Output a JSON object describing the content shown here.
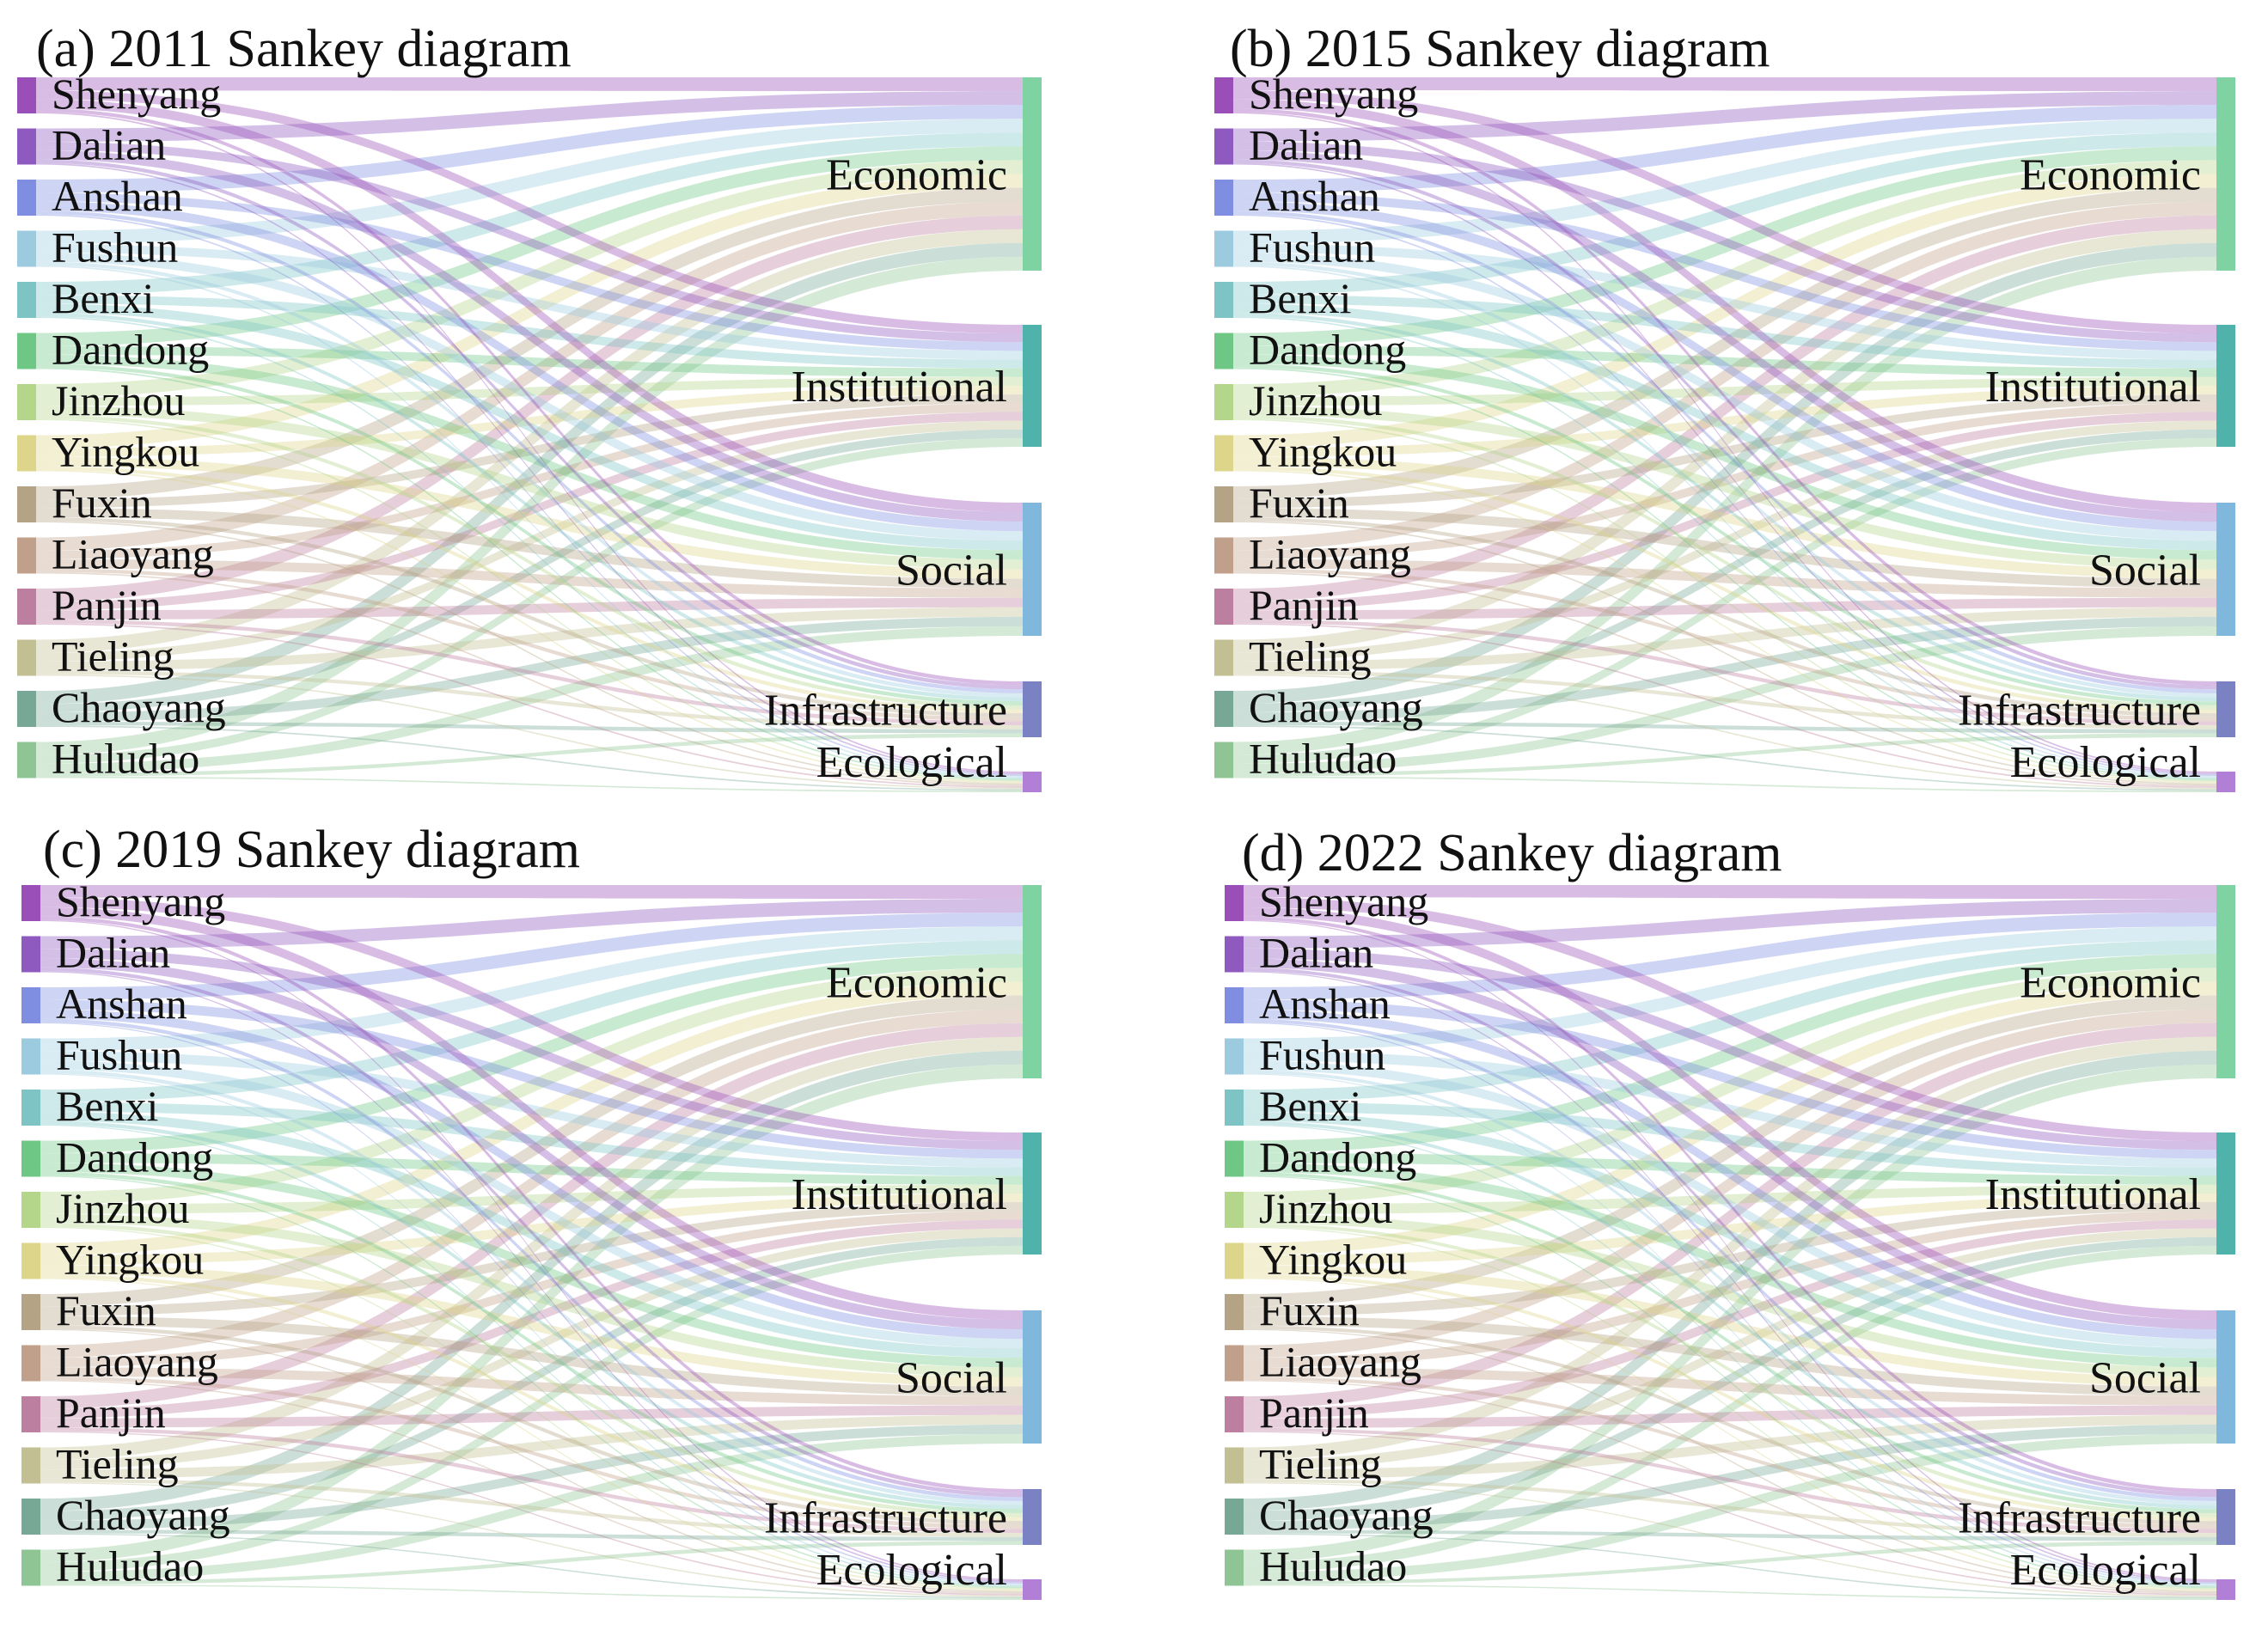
{
  "chart_data": [
    {
      "type": "sankey",
      "title": "(a) 2011 Sankey diagram",
      "sources": [
        "Shenyang",
        "Dalian",
        "Anshan",
        "Fushun",
        "Benxi",
        "Dandong",
        "Jinzhou",
        "Yingkou",
        "Fuxin",
        "Liaoyang",
        "Panjin",
        "Tieling",
        "Chaoyang",
        "Huludao"
      ],
      "targets": [
        "Economic",
        "Institutional",
        "Social",
        "Infrastructure",
        "Ecological"
      ],
      "target_weights": [
        36,
        23,
        25,
        10,
        4
      ]
    },
    {
      "type": "sankey",
      "title": "(b) 2015 Sankey diagram",
      "sources": [
        "Shenyang",
        "Dalian",
        "Anshan",
        "Fushun",
        "Benxi",
        "Dandong",
        "Jinzhou",
        "Yingkou",
        "Fuxin",
        "Liaoyang",
        "Panjin",
        "Tieling",
        "Chaoyang",
        "Huludao"
      ],
      "targets": [
        "Economic",
        "Institutional",
        "Social",
        "Infrastructure",
        "Ecological"
      ],
      "target_weights": [
        35,
        24,
        25,
        10,
        4
      ]
    },
    {
      "type": "sankey",
      "title": "(c) 2019 Sankey diagram",
      "sources": [
        "Shenyang",
        "Dalian",
        "Anshan",
        "Fushun",
        "Benxi",
        "Dandong",
        "Jinzhou",
        "Yingkou",
        "Fuxin",
        "Liaoyang",
        "Panjin",
        "Tieling",
        "Chaoyang",
        "Huludao"
      ],
      "targets": [
        "Economic",
        "Institutional",
        "Social",
        "Infrastructure",
        "Ecological"
      ],
      "target_weights": [
        34,
        26,
        25,
        10,
        3
      ]
    },
    {
      "type": "sankey",
      "title": "(d) 2022 Sankey diagram",
      "sources": [
        "Shenyang",
        "Dalian",
        "Anshan",
        "Fushun",
        "Benxi",
        "Dandong",
        "Jinzhou",
        "Yingkou",
        "Fuxin",
        "Liaoyang",
        "Panjin",
        "Tieling",
        "Chaoyang",
        "Huludao"
      ],
      "targets": [
        "Economic",
        "Institutional",
        "Social",
        "Infrastructure",
        "Ecological"
      ],
      "target_weights": [
        33,
        27,
        25,
        9,
        3
      ]
    }
  ],
  "colors": {
    "sources": [
      "#9a4fb8",
      "#8e5ac0",
      "#7f8ee0",
      "#9ccbe0",
      "#7fc4c4",
      "#6fc785",
      "#b3d68a",
      "#ddd58a",
      "#b5a386",
      "#c0a08a",
      "#bd7f9f",
      "#c2bf92",
      "#77a896",
      "#8fc494"
    ],
    "targets": [
      "#7fd3a2",
      "#4fb3ab",
      "#7fb8dc",
      "#7b82c4",
      "#b27fd6"
    ]
  }
}
